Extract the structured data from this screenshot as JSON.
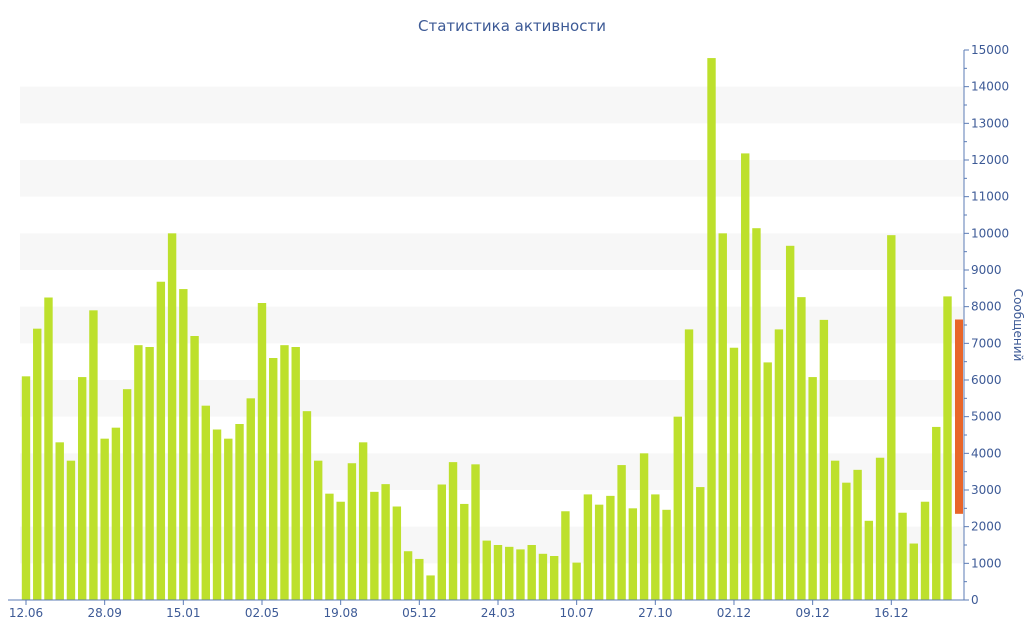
{
  "chart_data": {
    "type": "bar",
    "title": "Статистика активности",
    "ylabel": "Сообщений",
    "xlabel": "",
    "ylim": [
      0,
      15000
    ],
    "y_ticks": [
      0,
      1000,
      2000,
      3000,
      4000,
      5000,
      6000,
      7000,
      8000,
      9000,
      10000,
      11000,
      12000,
      13000,
      14000,
      15000
    ],
    "x_tick_labels": [
      {
        "label": "12.06",
        "index": 0
      },
      {
        "label": "28.09",
        "index": 7
      },
      {
        "label": "15.01",
        "index": 14
      },
      {
        "label": "02.05",
        "index": 21
      },
      {
        "label": "19.08",
        "index": 28
      },
      {
        "label": "05.12",
        "index": 35
      },
      {
        "label": "24.03",
        "index": 42
      },
      {
        "label": "10.07",
        "index": 49
      },
      {
        "label": "27.10",
        "index": 56
      },
      {
        "label": "02.12",
        "index": 63
      },
      {
        "label": "09.12",
        "index": 70
      },
      {
        "label": "16.12",
        "index": 77
      }
    ],
    "grid": true,
    "y_axis_position": "right",
    "bar_color": "#bde02c",
    "highlight_color": "#e8662a",
    "values": [
      6100,
      7400,
      8250,
      4300,
      3800,
      6080,
      7900,
      4400,
      4700,
      5750,
      6950,
      6900,
      8680,
      10000,
      8480,
      7200,
      5300,
      4650,
      4400,
      4800,
      5500,
      8100,
      6600,
      6950,
      6900,
      5150,
      3800,
      2900,
      2680,
      3730,
      4300,
      2950,
      3160,
      2550,
      1330,
      1120,
      670,
      3150,
      3760,
      2620,
      3700,
      1620,
      1500,
      1450,
      1380,
      1500,
      1260,
      1200,
      2420,
      1020,
      2880,
      2600,
      2840,
      3680,
      2500,
      4000,
      2880,
      2460,
      5000,
      7380,
      3080,
      14780,
      10000,
      6880,
      12180,
      10140,
      6480,
      7380,
      9660,
      8260,
      6080,
      7640,
      3800,
      3200,
      3550,
      2160,
      3880,
      9950,
      2380,
      1540,
      2680,
      4720,
      8280
    ],
    "highlight_bar": {
      "bottom": 2350,
      "top": 7650
    }
  }
}
